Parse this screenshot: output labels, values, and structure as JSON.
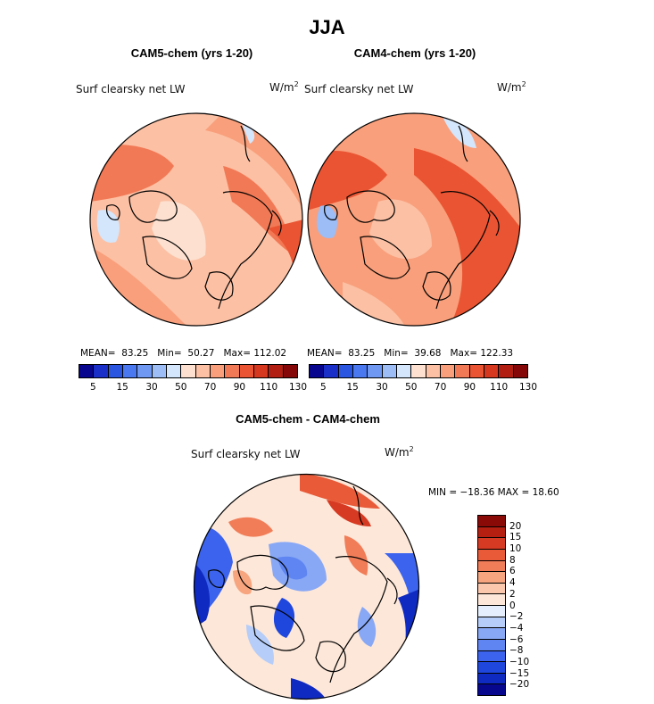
{
  "figure": {
    "title": "JJA",
    "colors": {
      "abs_scale": [
        "#08068f",
        "#1a2fc7",
        "#2a55e0",
        "#4a78f0",
        "#6f98f3",
        "#9cbdf6",
        "#d4e6fb",
        "#fde0cf",
        "#fcc0a4",
        "#f99f7b",
        "#f27955",
        "#ea5432",
        "#d6381f",
        "#b21e12",
        "#860707"
      ],
      "diff_scale": [
        "#07078e",
        "#0f2ac1",
        "#1f47dd",
        "#3b63ed",
        "#5f85f2",
        "#88a8f5",
        "#b5cdf8",
        "#e4eefc",
        "#fde7d9",
        "#fbc8ad",
        "#f7a57f",
        "#f17d58",
        "#e85a38",
        "#d73a22",
        "#b41f12",
        "#8a0a07"
      ]
    },
    "panels": [
      {
        "title": "CAM5-chem (yrs 1-20)",
        "label": "Surf clearsky net LW",
        "units": "W/m",
        "units_sup": "2",
        "stats": {
          "mean_label": "MEAN=",
          "mean": "83.25",
          "min_label": "Min=",
          "min": "50.27",
          "max_label": "Max=",
          "max": "112.02"
        }
      },
      {
        "title": "CAM4-chem (yrs 1-20)",
        "label": "Surf clearsky net LW",
        "units": "W/m",
        "units_sup": "2",
        "stats": {
          "mean_label": "MEAN=",
          "mean": "83.25",
          "min_label": "Min=",
          "min": "39.68",
          "max_label": "Max=",
          "max": "122.33"
        }
      }
    ],
    "abs_colorbar_ticks": [
      "5",
      "15",
      "30",
      "50",
      "70",
      "90",
      "110",
      "130"
    ],
    "diff_panel": {
      "title": "CAM5-chem - CAM4-chem",
      "label": "Surf clearsky net LW",
      "units": "W/m",
      "units_sup": "2",
      "minmax": "MIN = −18.36 MAX =   18.60",
      "colorbar_ticks": [
        "20",
        "15",
        "10",
        "8",
        "6",
        "4",
        "2",
        "0",
        "−2",
        "−4",
        "−6",
        "−8",
        "−10",
        "−15",
        "−20"
      ]
    }
  },
  "chart_data": [
    {
      "type": "heatmap",
      "projection": "north polar stereographic",
      "title": "CAM5-chem (yrs 1-20)",
      "variable": "Surf clearsky net LW",
      "units": "W/m2",
      "mean": 83.25,
      "min": 50.27,
      "max": 112.02,
      "colorbar_levels": [
        5,
        15,
        30,
        50,
        70,
        90,
        110,
        130
      ]
    },
    {
      "type": "heatmap",
      "projection": "north polar stereographic",
      "title": "CAM4-chem (yrs 1-20)",
      "variable": "Surf clearsky net LW",
      "units": "W/m2",
      "mean": 83.25,
      "min": 39.68,
      "max": 122.33,
      "colorbar_levels": [
        5,
        15,
        30,
        50,
        70,
        90,
        110,
        130
      ]
    },
    {
      "type": "heatmap",
      "projection": "north polar stereographic",
      "title": "CAM5-chem - CAM4-chem",
      "variable": "Surf clearsky net LW",
      "units": "W/m2",
      "min": -18.36,
      "max": 18.6,
      "colorbar_levels": [
        -20,
        -15,
        -10,
        -8,
        -6,
        -4,
        -2,
        0,
        2,
        4,
        6,
        8,
        10,
        15,
        20
      ]
    }
  ]
}
